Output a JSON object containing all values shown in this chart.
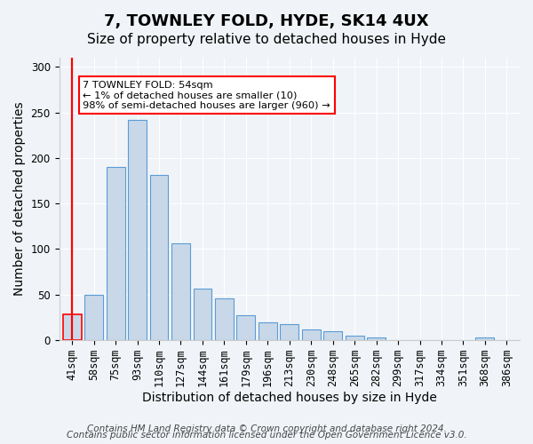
{
  "title": "7, TOWNLEY FOLD, HYDE, SK14 4UX",
  "subtitle": "Size of property relative to detached houses in Hyde",
  "xlabel": "Distribution of detached houses by size in Hyde",
  "ylabel": "Number of detached properties",
  "categories": [
    "41sqm",
    "58sqm",
    "75sqm",
    "93sqm",
    "110sqm",
    "127sqm",
    "144sqm",
    "161sqm",
    "179sqm",
    "196sqm",
    "213sqm",
    "230sqm",
    "248sqm",
    "265sqm",
    "282sqm",
    "299sqm",
    "317sqm",
    "334sqm",
    "351sqm",
    "368sqm",
    "386sqm"
  ],
  "values": [
    28,
    50,
    190,
    242,
    181,
    106,
    57,
    46,
    27,
    19,
    18,
    12,
    10,
    5,
    3,
    0,
    0,
    0,
    0,
    3,
    0
  ],
  "bar_color": "#c8d8e8",
  "bar_edge_color": "#5b9bd5",
  "highlight_bar_index": 0,
  "highlight_color": "#c8d8e8",
  "highlight_edge_color": "#ff0000",
  "annotation_text": "7 TOWNLEY FOLD: 54sqm\n← 1% of detached houses are smaller (10)\n98% of semi-detached houses are larger (960) →",
  "annotation_box_color": "#ffffff",
  "annotation_box_edge_color": "#ff0000",
  "vline_x": 0,
  "vline_color": "#ff0000",
  "ylim": [
    0,
    310
  ],
  "yticks": [
    0,
    50,
    100,
    150,
    200,
    250,
    300
  ],
  "footer_line1": "Contains HM Land Registry data © Crown copyright and database right 2024.",
  "footer_line2": "Contains public sector information licensed under the Open Government Licence v3.0.",
  "background_color": "#f0f4f8",
  "plot_background_color": "#f0f4f8",
  "grid_color": "#ffffff",
  "title_fontsize": 13,
  "subtitle_fontsize": 11,
  "axis_label_fontsize": 10,
  "tick_fontsize": 8.5,
  "footer_fontsize": 7.5
}
